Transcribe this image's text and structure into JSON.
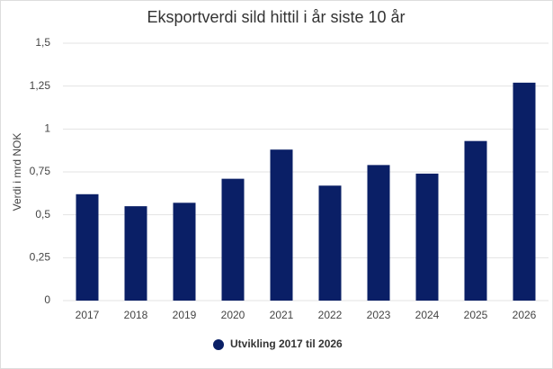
{
  "chart_data": {
    "type": "bar",
    "title": "Eksportverdi sild hittil i år siste 10 år",
    "y_label": "Verdi i mrd NOK",
    "categories": [
      "2017",
      "2018",
      "2019",
      "2020",
      "2021",
      "2022",
      "2023",
      "2024",
      "2025",
      "2026"
    ],
    "series": [
      {
        "name": "Utvikling 2017 til 2026",
        "color": "#0a1f66",
        "values": [
          0.62,
          0.55,
          0.57,
          0.71,
          0.88,
          0.67,
          0.79,
          0.74,
          0.93,
          1.27
        ]
      }
    ],
    "ylim": [
      0,
      1.5
    ],
    "yticks": [
      0,
      {
        "value": 0.25,
        "label": "0,25"
      },
      {
        "value": 0.5,
        "label": "0,5"
      },
      {
        "value": 0.75,
        "label": "0,75"
      },
      1,
      {
        "value": 1.25,
        "label": "1,25"
      },
      {
        "value": 1.5,
        "label": "1,5"
      }
    ],
    "grid": true
  }
}
